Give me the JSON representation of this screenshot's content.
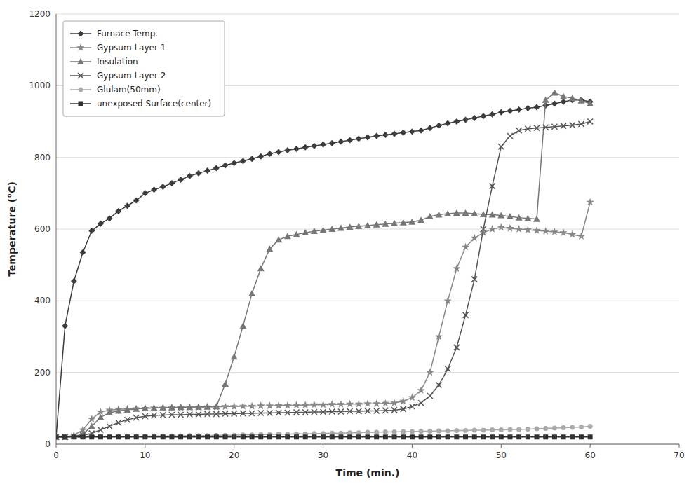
{
  "chart_data": {
    "type": "line",
    "xlabel": "Time (min.)",
    "ylabel": "Temperature (°C)",
    "xlim": [
      0,
      70
    ],
    "ylim": [
      0,
      1200
    ],
    "xticks": [
      0,
      10,
      20,
      30,
      40,
      50,
      60,
      70
    ],
    "yticks": [
      0,
      200,
      400,
      600,
      800,
      1000,
      1200
    ],
    "grid": "y",
    "legend": "upper left",
    "x": [
      0,
      1,
      2,
      3,
      4,
      5,
      6,
      7,
      8,
      9,
      10,
      11,
      12,
      13,
      14,
      15,
      16,
      17,
      18,
      19,
      20,
      21,
      22,
      23,
      24,
      25,
      26,
      27,
      28,
      29,
      30,
      31,
      32,
      33,
      34,
      35,
      36,
      37,
      38,
      39,
      40,
      41,
      42,
      43,
      44,
      45,
      46,
      47,
      48,
      49,
      50,
      51,
      52,
      53,
      54,
      55,
      56,
      57,
      58,
      59,
      60
    ],
    "series": [
      {
        "name": "Furnace Temp.",
        "color": "#3c3c3c",
        "marker": "diamond",
        "values": [
          20,
          330,
          455,
          535,
          595,
          615,
          630,
          650,
          665,
          680,
          700,
          710,
          718,
          728,
          738,
          748,
          756,
          763,
          770,
          778,
          784,
          790,
          796,
          803,
          810,
          815,
          820,
          824,
          828,
          832,
          836,
          840,
          844,
          848,
          852,
          856,
          860,
          863,
          866,
          869,
          872,
          875,
          882,
          889,
          895,
          900,
          905,
          910,
          915,
          920,
          926,
          930,
          933,
          937,
          940,
          945,
          950,
          955,
          960,
          960,
          955
        ]
      },
      {
        "name": "Gypsum Layer 1",
        "color": "#888888",
        "marker": "star",
        "values": [
          20,
          20,
          25,
          40,
          70,
          90,
          95,
          97,
          98,
          99,
          100,
          101,
          101,
          102,
          102,
          103,
          103,
          104,
          104,
          105,
          105,
          106,
          106,
          107,
          107,
          108,
          108,
          109,
          109,
          110,
          110,
          111,
          111,
          112,
          112,
          113,
          113,
          114,
          115,
          120,
          130,
          150,
          200,
          300,
          400,
          490,
          550,
          575,
          590,
          600,
          605,
          602,
          600,
          598,
          596,
          594,
          592,
          590,
          585,
          580,
          675
        ]
      },
      {
        "name": "Insulation",
        "color": "#777777",
        "marker": "triangle",
        "values": [
          20,
          20,
          22,
          28,
          50,
          75,
          88,
          93,
          96,
          98,
          100,
          101,
          102,
          102,
          103,
          103,
          104,
          104,
          105,
          168,
          244,
          330,
          420,
          490,
          545,
          570,
          580,
          585,
          590,
          594,
          597,
          600,
          603,
          606,
          608,
          610,
          612,
          614,
          616,
          618,
          620,
          625,
          635,
          640,
          643,
          645,
          645,
          643,
          641,
          640,
          638,
          635,
          632,
          630,
          628,
          960,
          980,
          970,
          965,
          958,
          950
        ]
      },
      {
        "name": "Gypsum Layer 2",
        "color": "#555555",
        "marker": "x",
        "values": [
          20,
          20,
          22,
          25,
          30,
          40,
          50,
          60,
          68,
          74,
          78,
          80,
          81,
          82,
          82,
          83,
          83,
          84,
          84,
          85,
          85,
          86,
          86,
          87,
          87,
          88,
          88,
          89,
          89,
          90,
          90,
          91,
          91,
          92,
          92,
          93,
          93,
          94,
          95,
          98,
          105,
          115,
          135,
          165,
          210,
          270,
          360,
          460,
          600,
          720,
          830,
          860,
          875,
          880,
          882,
          884,
          886,
          888,
          890,
          893,
          900
        ]
      },
      {
        "name": "Glulam(50mm)",
        "color": "#aaaaaa",
        "marker": "circle",
        "values": [
          20,
          20,
          20,
          20,
          21,
          21,
          21,
          22,
          22,
          22,
          22,
          23,
          23,
          23,
          23,
          24,
          24,
          24,
          25,
          25,
          25,
          26,
          26,
          27,
          27,
          28,
          28,
          29,
          29,
          30,
          30,
          31,
          31,
          32,
          32,
          33,
          33,
          34,
          34,
          35,
          35,
          36,
          36,
          37,
          37,
          38,
          38,
          39,
          39,
          40,
          40,
          41,
          41,
          42,
          43,
          44,
          45,
          46,
          47,
          48,
          50
        ]
      },
      {
        "name": "unexposed Surface(center)",
        "color": "#333333",
        "marker": "square",
        "values": [
          20,
          20,
          20,
          20,
          20,
          20,
          20,
          20,
          20,
          20,
          20,
          20,
          20,
          20,
          20,
          20,
          20,
          20,
          20,
          20,
          20,
          20,
          20,
          20,
          20,
          20,
          20,
          20,
          20,
          20,
          20,
          20,
          20,
          20,
          20,
          20,
          20,
          20,
          20,
          20,
          20,
          20,
          20,
          20,
          20,
          20,
          20,
          20,
          20,
          20,
          20,
          20,
          20,
          20,
          20,
          20,
          20,
          20,
          20,
          20,
          20
        ]
      }
    ]
  }
}
